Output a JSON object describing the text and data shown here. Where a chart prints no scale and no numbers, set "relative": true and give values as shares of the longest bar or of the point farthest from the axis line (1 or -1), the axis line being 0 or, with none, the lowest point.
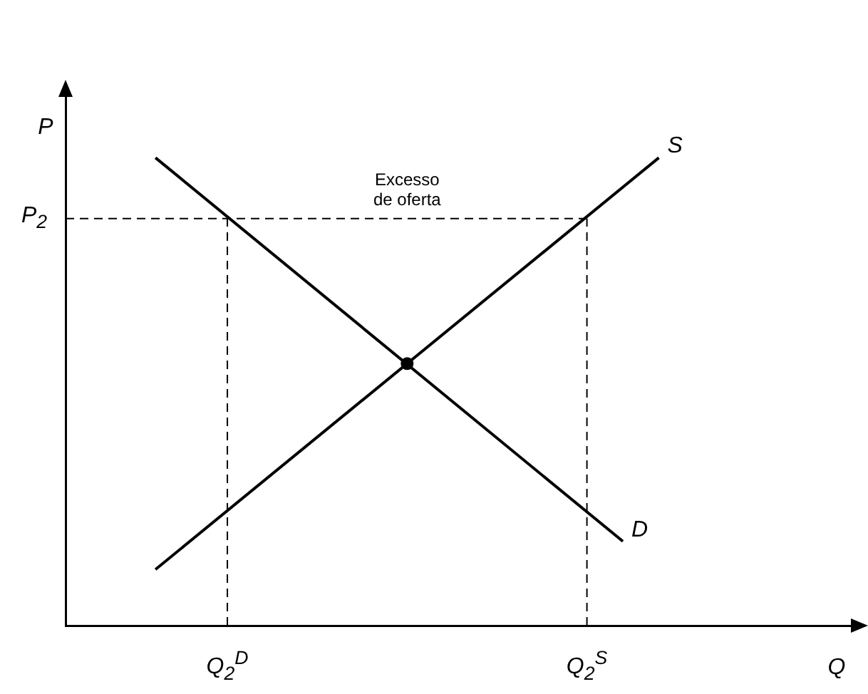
{
  "chart_data": {
    "type": "line",
    "relative": true,
    "xlabel": "Q",
    "ylabel": "P",
    "legend": false,
    "marker": "none",
    "line_style": "solid",
    "grid": false,
    "categories": [
      null,
      null,
      null,
      null,
      "Q$_{2}$$^{D}$",
      null,
      null,
      null,
      null,
      null,
      null,
      null,
      null,
      null,
      "Q$_{2}$$^{S}$",
      null,
      null,
      null,
      null,
      null,
      null,
      null
    ],
    "series": [
      {
        "name": "D",
        "color": "#000000",
        "values": [
          null,
          null,
          1.0,
          null,
          null,
          null,
          null,
          null,
          null,
          null,
          null,
          null,
          null,
          null,
          null,
          0.18,
          null,
          null,
          null,
          null,
          null,
          null
        ]
      },
      {
        "name": "S",
        "color": "#000000",
        "values": [
          null,
          null,
          0.12,
          null,
          null,
          null,
          null,
          null,
          null,
          null,
          null,
          null,
          null,
          null,
          null,
          null,
          1.0,
          null,
          null,
          null,
          null,
          null
        ]
      },
      {
        "type": "scatter",
        "color": "#000000",
        "marker": "circle",
        "values": [
          null,
          null,
          null,
          null,
          null,
          null,
          null,
          null,
          null,
          0.56,
          null,
          null,
          null,
          null,
          null,
          null,
          null,
          null,
          null,
          null,
          null,
          null
        ]
      }
    ],
    "ref_lines": [
      {
        "axis": "y",
        "value": 0.87,
        "label": "P$_{2}$",
        "line_style": "dashed",
        "color": "#000000"
      },
      {
        "axis": "x",
        "value": "Q$_{2}$$^{D}$",
        "line_style": "dashed",
        "color": "#000000"
      },
      {
        "axis": "x",
        "value": "Q$_{2}$$^{S}$",
        "line_style": "dashed",
        "color": "#000000"
      }
    ],
    "annotations": [
      {
        "text": "Excesso de oferta",
        "y": 0.87
      }
    ]
  }
}
